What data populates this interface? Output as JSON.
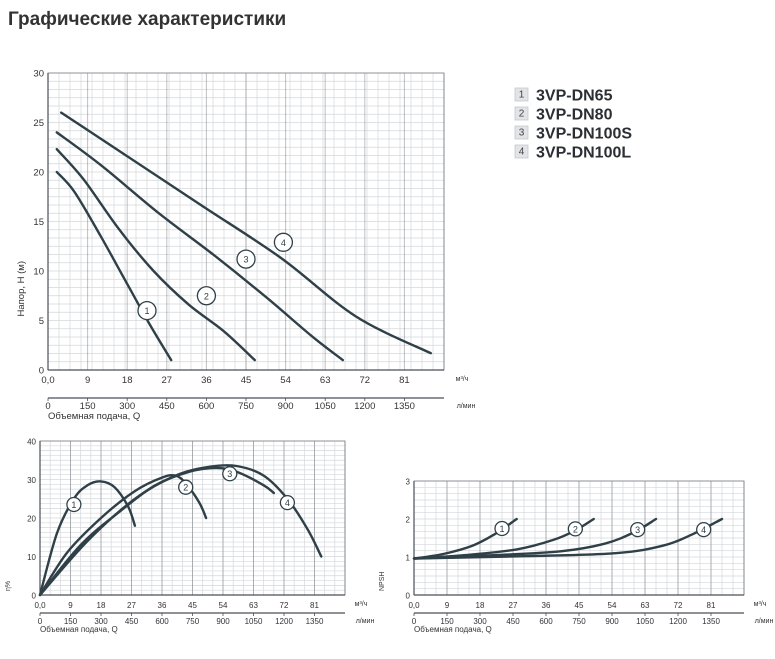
{
  "page_title": "Графические характеристики",
  "legend": [
    {
      "num": "1",
      "name": "3VP-DN65"
    },
    {
      "num": "2",
      "name": "3VP-DN80"
    },
    {
      "num": "3",
      "name": "3VP-DN100S"
    },
    {
      "num": "4",
      "name": "3VP-DN100L"
    }
  ],
  "chart_data": [
    {
      "id": "head",
      "type": "line",
      "ylabel": "Напор, H (м)",
      "xlabel": "Объемная подача, Q",
      "x_unit": "м³/ч",
      "x2_unit": "л/мин",
      "xlim": [
        0,
        90
      ],
      "ylim": [
        0,
        30
      ],
      "x_ticks": [
        "0,0",
        "9",
        "18",
        "27",
        "36",
        "45",
        "54",
        "63",
        "72",
        "81"
      ],
      "x2_ticks": [
        "0",
        "150",
        "300",
        "450",
        "600",
        "750",
        "900",
        "1050",
        "1200",
        "1350"
      ],
      "y_ticks": [
        "0",
        "5",
        "10",
        "15",
        "20",
        "25",
        "30"
      ],
      "grid": true,
      "series": [
        {
          "marker": "1",
          "points": [
            [
              2,
              20
            ],
            [
              6,
              18
            ],
            [
              12,
              13.5
            ],
            [
              18,
              8.7
            ],
            [
              23,
              4.7
            ],
            [
              28,
              1
            ]
          ],
          "label_at": [
            22.5,
            6
          ]
        },
        {
          "marker": "2",
          "points": [
            [
              2,
              22.3
            ],
            [
              8,
              19.3
            ],
            [
              16,
              14.3
            ],
            [
              24,
              10
            ],
            [
              32,
              6.6
            ],
            [
              40,
              3.9
            ],
            [
              47,
              1
            ]
          ],
          "label_at": [
            36,
            7.5
          ]
        },
        {
          "marker": "3",
          "points": [
            [
              2,
              24
            ],
            [
              12,
              20.7
            ],
            [
              25,
              15.9
            ],
            [
              38,
              11.5
            ],
            [
              50,
              7.2
            ],
            [
              60,
              3.4
            ],
            [
              67,
              1
            ]
          ],
          "label_at": [
            45,
            11.2
          ]
        },
        {
          "marker": "4",
          "points": [
            [
              3,
              26
            ],
            [
              18,
              21.6
            ],
            [
              35,
              16.6
            ],
            [
              53,
              11.3
            ],
            [
              70,
              5.4
            ],
            [
              87,
              1.7
            ]
          ],
          "label_at": [
            53.5,
            12.9
          ]
        }
      ]
    },
    {
      "id": "efficiency",
      "type": "line",
      "ylabel": "η%",
      "xlabel": "Объемная подача, Q",
      "x_unit": "м³/ч",
      "x2_unit": "л/мин",
      "xlim": [
        0,
        90
      ],
      "ylim": [
        0,
        40
      ],
      "x_ticks": [
        "0,0",
        "9",
        "18",
        "27",
        "36",
        "45",
        "54",
        "63",
        "72",
        "81"
      ],
      "x2_ticks": [
        "0",
        "150",
        "300",
        "450",
        "600",
        "750",
        "900",
        "1050",
        "1200",
        "1350"
      ],
      "y_ticks": [
        "0",
        "10",
        "20",
        "30",
        "40"
      ],
      "grid": true,
      "series": [
        {
          "marker": "1",
          "points": [
            [
              0,
              0
            ],
            [
              5,
              16
            ],
            [
              10,
              25
            ],
            [
              14,
              28.5
            ],
            [
              18,
              29.5
            ],
            [
              22,
              28
            ],
            [
              26,
              23
            ],
            [
              28,
              18
            ]
          ],
          "label_at": [
            10,
            23.5
          ]
        },
        {
          "marker": "2",
          "points": [
            [
              0,
              0
            ],
            [
              8,
              11
            ],
            [
              18,
              20
            ],
            [
              28,
              27
            ],
            [
              36,
              30.5
            ],
            [
              40,
              31
            ],
            [
              43,
              29
            ],
            [
              47,
              24
            ],
            [
              49,
              20
            ]
          ],
          "label_at": [
            43,
            28
          ]
        },
        {
          "marker": "3",
          "points": [
            [
              0,
              0
            ],
            [
              12,
              13
            ],
            [
              24,
              22
            ],
            [
              34,
              28.5
            ],
            [
              44,
              32
            ],
            [
              52,
              33
            ],
            [
              58,
              32
            ],
            [
              66,
              28.5
            ],
            [
              69,
              26.5
            ]
          ],
          "label_at": [
            56,
            31.5
          ]
        },
        {
          "marker": "4",
          "points": [
            [
              0,
              0
            ],
            [
              14,
              14
            ],
            [
              28,
              25
            ],
            [
              40,
              31
            ],
            [
              50,
              33.3
            ],
            [
              58,
              33.5
            ],
            [
              66,
              31
            ],
            [
              73,
              25
            ],
            [
              79,
              17
            ],
            [
              83,
              10
            ]
          ],
          "label_at": [
            73,
            24
          ]
        }
      ]
    },
    {
      "id": "npsh",
      "type": "line",
      "ylabel": "NPSH",
      "xlabel": "Объемная подача, Q",
      "x_unit": "м³/ч",
      "x2_unit": "л/мин",
      "xlim": [
        0,
        90
      ],
      "ylim": [
        0,
        3
      ],
      "x_ticks": [
        "0,0",
        "9",
        "18",
        "27",
        "36",
        "45",
        "54",
        "63",
        "72",
        "81"
      ],
      "x2_ticks": [
        "0",
        "150",
        "300",
        "450",
        "600",
        "750",
        "900",
        "1050",
        "1200",
        "1350"
      ],
      "y_ticks": [
        "0",
        "1",
        "2",
        "3"
      ],
      "grid": true,
      "series": [
        {
          "marker": "1",
          "points": [
            [
              0,
              0.96
            ],
            [
              8,
              1.08
            ],
            [
              16,
              1.3
            ],
            [
              22,
              1.6
            ],
            [
              28,
              2
            ]
          ],
          "label_at": [
            24,
            1.75
          ]
        },
        {
          "marker": "2",
          "points": [
            [
              0,
              0.96
            ],
            [
              14,
              1.05
            ],
            [
              28,
              1.2
            ],
            [
              38,
              1.45
            ],
            [
              44,
              1.7
            ],
            [
              49,
              2
            ]
          ],
          "label_at": [
            44,
            1.74
          ]
        },
        {
          "marker": "3",
          "points": [
            [
              0,
              0.96
            ],
            [
              20,
              1.04
            ],
            [
              40,
              1.15
            ],
            [
              52,
              1.35
            ],
            [
              60,
              1.65
            ],
            [
              66,
              2
            ]
          ],
          "label_at": [
            61,
            1.72
          ]
        },
        {
          "marker": "4",
          "points": [
            [
              0,
              0.96
            ],
            [
              30,
              1.02
            ],
            [
              55,
              1.1
            ],
            [
              68,
              1.3
            ],
            [
              76,
              1.6
            ],
            [
              84,
              2
            ]
          ],
          "label_at": [
            79,
            1.72
          ]
        }
      ]
    }
  ]
}
